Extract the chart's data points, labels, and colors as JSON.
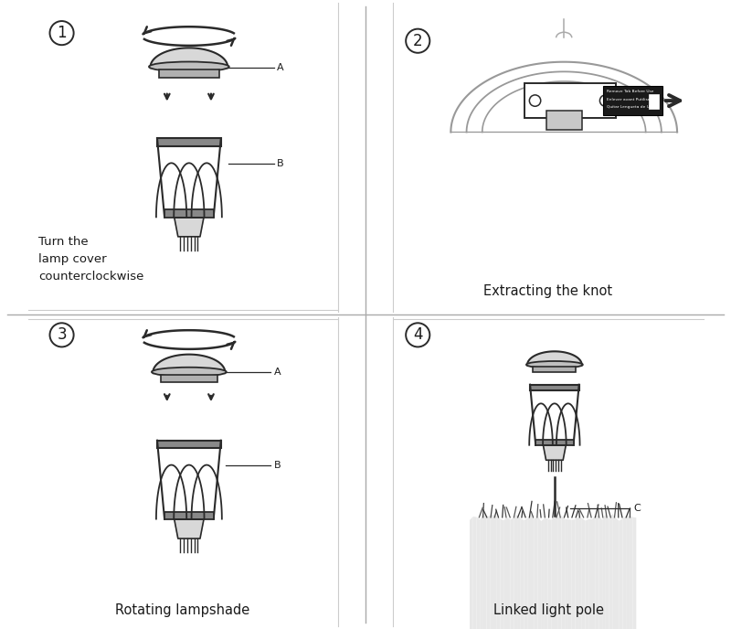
{
  "bg_color": "#ffffff",
  "line_color": "#2a2a2a",
  "text_color": "#1a1a1a",
  "captions": [
    "Turn the\nlamp cover\ncounterclockwise",
    "Extracting the knot",
    "Rotating lampshade",
    "Linked light pole"
  ],
  "label_A": "A",
  "label_B": "B",
  "label_C": "C"
}
